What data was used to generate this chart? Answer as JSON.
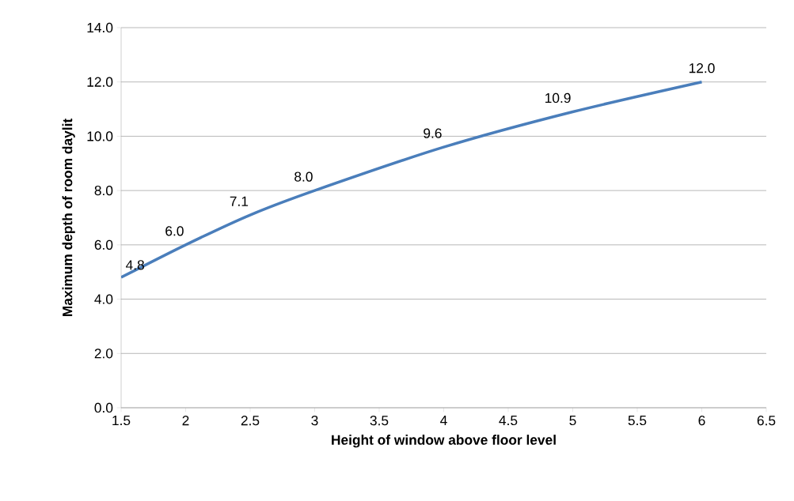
{
  "chart_data": {
    "type": "line",
    "xlabel": "Height of window above floor level",
    "ylabel": "Maximum depth of room daylit",
    "x": [
      1.5,
      2,
      2.5,
      3,
      4,
      5,
      6
    ],
    "series": [
      {
        "color": "#4a7ebb",
        "values": [
          4.8,
          6.0,
          7.1,
          8.0,
          9.6,
          10.9,
          12.0
        ],
        "value_labels": [
          "4.8",
          "6.0",
          "7.1",
          "8.0",
          "9.6",
          "10.9",
          "12.0"
        ]
      }
    ],
    "xlim": [
      1.5,
      6.5
    ],
    "xticks": [
      1.5,
      2,
      2.5,
      3,
      3.5,
      4,
      4.5,
      5,
      5.5,
      6,
      6.5
    ],
    "ylim": [
      0,
      14
    ],
    "yticks": [
      {
        "value": 0,
        "label": "0.0"
      },
      {
        "value": 2,
        "label": "2.0"
      },
      {
        "value": 4,
        "label": "4.0"
      },
      {
        "value": 6,
        "label": "6.0"
      },
      {
        "value": 8,
        "label": "8.0"
      },
      {
        "value": 10,
        "label": "10.0"
      },
      {
        "value": 12,
        "label": "12.0"
      },
      {
        "value": 14,
        "label": "14.0"
      }
    ],
    "grid": "y",
    "marker": "none",
    "line_style": "solid"
  }
}
